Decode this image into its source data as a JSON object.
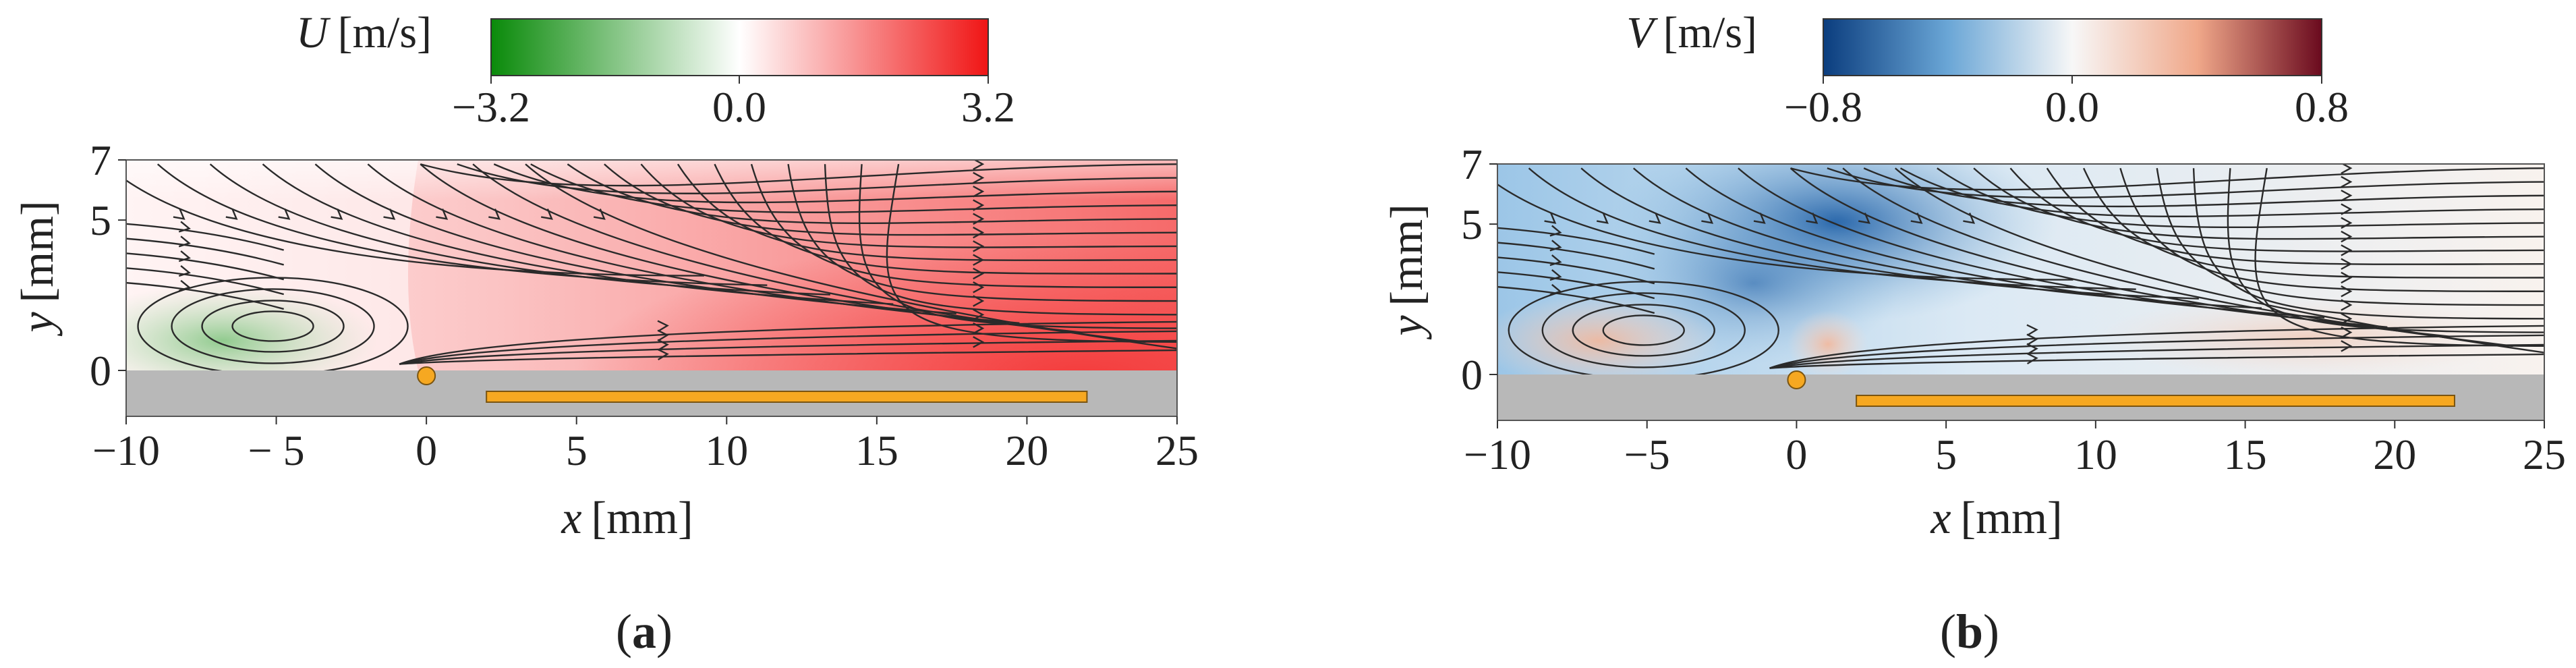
{
  "chart_data": [
    {
      "type": "heatmap",
      "panel_label": "a",
      "colorbar": {
        "symbol": "U",
        "unit": "[m/s]",
        "range": [
          -3.2,
          3.2
        ],
        "ticks": [
          "−3.2",
          "0.0",
          "3.2"
        ],
        "colormap": [
          "#0a8a0a",
          "#ffffff",
          "#f01515"
        ]
      },
      "xlabel_symbol": "x",
      "xlabel_unit": "[mm]",
      "ylabel_symbol": "y",
      "ylabel_unit": "[mm]",
      "xlim": [
        -10,
        25
      ],
      "ylim": [
        -1.5,
        7
      ],
      "xticks": [
        -10,
        -5,
        0,
        5,
        10,
        15,
        20,
        25
      ],
      "xtick_labels": [
        "−10",
        "− 5",
        "0",
        "5",
        "10",
        "15",
        "20",
        "25"
      ],
      "yticks": [
        0,
        5,
        7
      ],
      "ytick_labels": [
        "0",
        "5",
        "7"
      ],
      "wall_y": 0,
      "jet_source_x": 0,
      "electrode_x": [
        2,
        22
      ]
    },
    {
      "type": "heatmap",
      "panel_label": "b",
      "colorbar": {
        "symbol": "V",
        "unit": "[m/s]",
        "range": [
          -0.8,
          0.8
        ],
        "ticks": [
          "−0.8",
          "0.0",
          "0.8"
        ],
        "colormap": [
          "#0b3d7e",
          "#6aa6d6",
          "#f7f7f7",
          "#f0a88a",
          "#6a0a1e"
        ]
      },
      "xlabel_symbol": "x",
      "xlabel_unit": "[mm]",
      "ylabel_symbol": "y",
      "ylabel_unit": "[mm]",
      "xlim": [
        -10,
        25
      ],
      "ylim": [
        -1.5,
        7
      ],
      "xticks": [
        -10,
        -5,
        0,
        5,
        10,
        15,
        20,
        25
      ],
      "xtick_labels": [
        "−10",
        "−5",
        "0",
        "5",
        "10",
        "15",
        "20",
        "25"
      ],
      "yticks": [
        0,
        5,
        7
      ],
      "ytick_labels": [
        "0",
        "5",
        "7"
      ],
      "wall_y": 0,
      "jet_source_x": 0,
      "electrode_x": [
        2,
        22
      ]
    }
  ]
}
